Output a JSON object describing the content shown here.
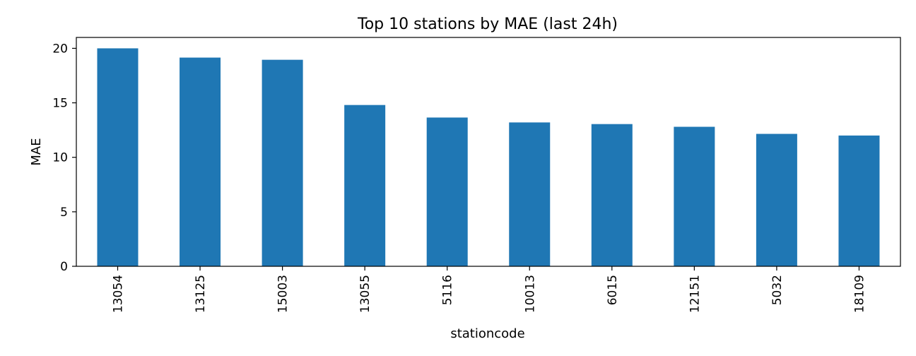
{
  "chart_data": {
    "type": "bar",
    "title": "Top 10 stations by MAE (last 24h)",
    "xlabel": "stationcode",
    "ylabel": "MAE",
    "categories": [
      "13054",
      "13125",
      "15003",
      "13055",
      "5116",
      "10013",
      "6015",
      "12151",
      "5032",
      "18109"
    ],
    "values": [
      20.0,
      19.15,
      18.95,
      14.8,
      13.65,
      13.2,
      13.05,
      12.8,
      12.15,
      12.0
    ],
    "ylim": [
      0,
      21.0
    ],
    "yticks": [
      0,
      5,
      10,
      15,
      20
    ],
    "grid": false,
    "legend": "none",
    "bar_color": "#1f77b4"
  }
}
